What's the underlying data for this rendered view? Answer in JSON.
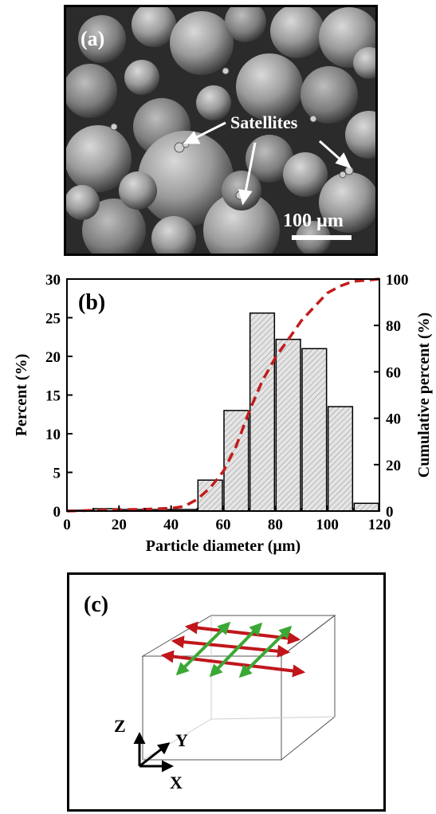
{
  "panel_a": {
    "label": "(a)",
    "annotation": "Satellites",
    "scale_bar_label": "100 µm"
  },
  "panel_c": {
    "label": "(c)",
    "axis_z": "Z",
    "axis_y": "Y",
    "axis_x": "X",
    "colors": {
      "red_track": "#c0161c",
      "green_track": "#3aa835"
    }
  },
  "chart_data": {
    "type": "bar",
    "panel_label": "(b)",
    "xlabel": "Particle diameter (µm)",
    "ylabel": "Percent (%)",
    "y2label": "Cumulative percent (%)",
    "xlim": [
      0,
      120
    ],
    "ylim": [
      0,
      30
    ],
    "y2lim": [
      0,
      100
    ],
    "xticks": [
      0,
      20,
      40,
      60,
      80,
      100,
      120
    ],
    "yticks": [
      0,
      5,
      10,
      15,
      20,
      25,
      30
    ],
    "y2ticks": [
      0,
      20,
      40,
      60,
      80,
      100
    ],
    "bar_width": 10,
    "bars": [
      {
        "center": 5,
        "value": 0.1
      },
      {
        "center": 15,
        "value": 0.3
      },
      {
        "center": 25,
        "value": 0.2
      },
      {
        "center": 35,
        "value": 0.2
      },
      {
        "center": 45,
        "value": 0.2
      },
      {
        "center": 55,
        "value": 4.0
      },
      {
        "center": 65,
        "value": 13.0
      },
      {
        "center": 75,
        "value": 25.6
      },
      {
        "center": 85,
        "value": 22.2
      },
      {
        "center": 95,
        "value": 21.0
      },
      {
        "center": 105,
        "value": 13.5
      },
      {
        "center": 115,
        "value": 1.0
      }
    ],
    "cumulative": {
      "x": [
        0,
        10,
        20,
        30,
        40,
        45,
        50,
        55,
        60,
        65,
        70,
        75,
        80,
        85,
        90,
        95,
        100,
        105,
        110,
        115,
        120
      ],
      "y": [
        0,
        0.3,
        0.6,
        0.8,
        1.2,
        2.0,
        5,
        10,
        17,
        28,
        43,
        56,
        66,
        74,
        82,
        88,
        94,
        97,
        99,
        99.5,
        100
      ]
    },
    "colors": {
      "bar_fill": "#e4e4e4",
      "bar_edge": "#000000",
      "hatch": "#8c8c8c",
      "cumulative_line": "#c21c1c"
    }
  }
}
